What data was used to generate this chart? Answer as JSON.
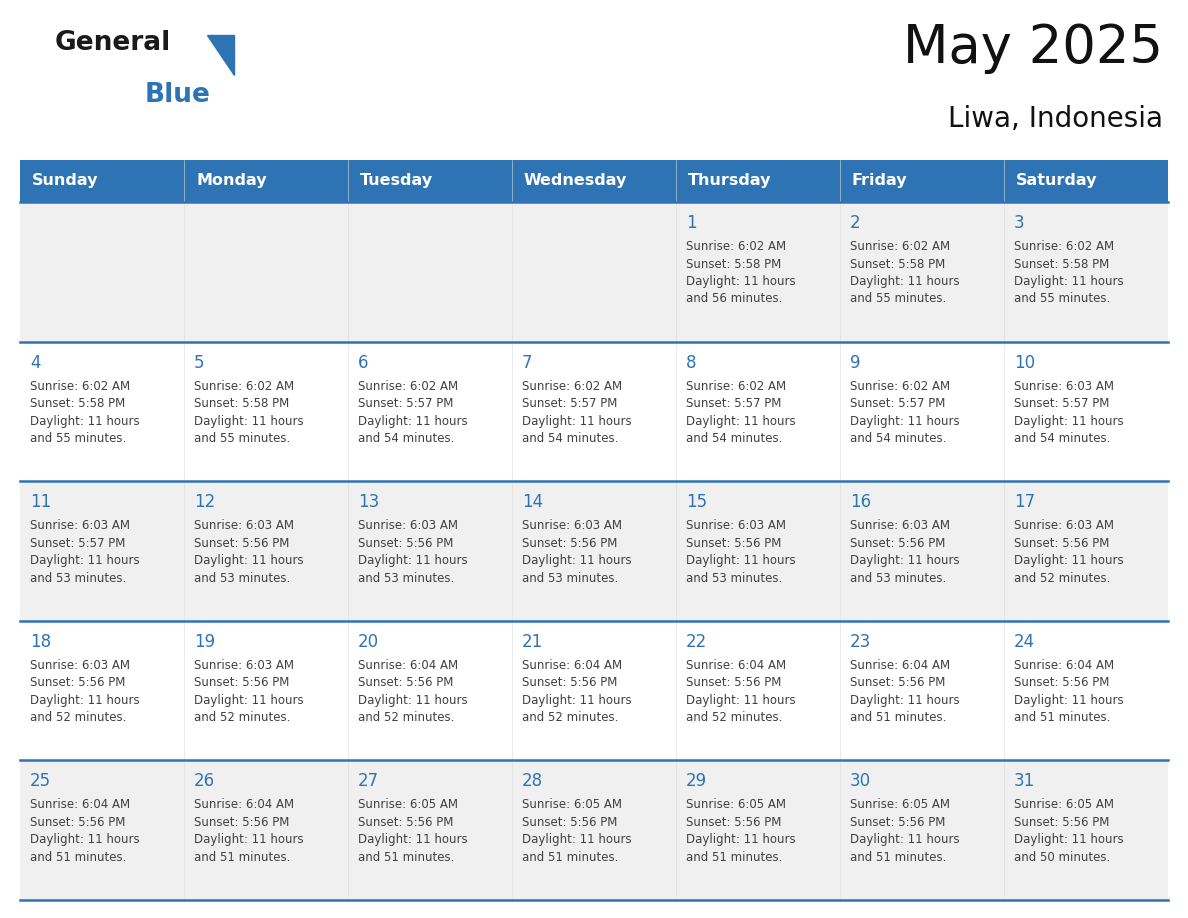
{
  "title": "May 2025",
  "subtitle": "Liwa, Indonesia",
  "header_bg": "#2E74B5",
  "header_text_color": "#FFFFFF",
  "weekdays": [
    "Sunday",
    "Monday",
    "Tuesday",
    "Wednesday",
    "Thursday",
    "Friday",
    "Saturday"
  ],
  "row_bg_even": "#F0F0F0",
  "row_bg_odd": "#FFFFFF",
  "day_number_color": "#2E74B5",
  "text_color": "#404040",
  "separator_color": "#2E74B5",
  "logo_black": "#1a1a1a",
  "logo_blue": "#2E74B5",
  "calendar": [
    [
      {
        "day": "",
        "sunrise": "",
        "sunset": "",
        "daylight": ""
      },
      {
        "day": "",
        "sunrise": "",
        "sunset": "",
        "daylight": ""
      },
      {
        "day": "",
        "sunrise": "",
        "sunset": "",
        "daylight": ""
      },
      {
        "day": "",
        "sunrise": "",
        "sunset": "",
        "daylight": ""
      },
      {
        "day": "1",
        "sunrise": "6:02 AM",
        "sunset": "5:58 PM",
        "daylight": "11 hours and 56 minutes."
      },
      {
        "day": "2",
        "sunrise": "6:02 AM",
        "sunset": "5:58 PM",
        "daylight": "11 hours and 55 minutes."
      },
      {
        "day": "3",
        "sunrise": "6:02 AM",
        "sunset": "5:58 PM",
        "daylight": "11 hours and 55 minutes."
      }
    ],
    [
      {
        "day": "4",
        "sunrise": "6:02 AM",
        "sunset": "5:58 PM",
        "daylight": "11 hours and 55 minutes."
      },
      {
        "day": "5",
        "sunrise": "6:02 AM",
        "sunset": "5:58 PM",
        "daylight": "11 hours and 55 minutes."
      },
      {
        "day": "6",
        "sunrise": "6:02 AM",
        "sunset": "5:57 PM",
        "daylight": "11 hours and 54 minutes."
      },
      {
        "day": "7",
        "sunrise": "6:02 AM",
        "sunset": "5:57 PM",
        "daylight": "11 hours and 54 minutes."
      },
      {
        "day": "8",
        "sunrise": "6:02 AM",
        "sunset": "5:57 PM",
        "daylight": "11 hours and 54 minutes."
      },
      {
        "day": "9",
        "sunrise": "6:02 AM",
        "sunset": "5:57 PM",
        "daylight": "11 hours and 54 minutes."
      },
      {
        "day": "10",
        "sunrise": "6:03 AM",
        "sunset": "5:57 PM",
        "daylight": "11 hours and 54 minutes."
      }
    ],
    [
      {
        "day": "11",
        "sunrise": "6:03 AM",
        "sunset": "5:57 PM",
        "daylight": "11 hours and 53 minutes."
      },
      {
        "day": "12",
        "sunrise": "6:03 AM",
        "sunset": "5:56 PM",
        "daylight": "11 hours and 53 minutes."
      },
      {
        "day": "13",
        "sunrise": "6:03 AM",
        "sunset": "5:56 PM",
        "daylight": "11 hours and 53 minutes."
      },
      {
        "day": "14",
        "sunrise": "6:03 AM",
        "sunset": "5:56 PM",
        "daylight": "11 hours and 53 minutes."
      },
      {
        "day": "15",
        "sunrise": "6:03 AM",
        "sunset": "5:56 PM",
        "daylight": "11 hours and 53 minutes."
      },
      {
        "day": "16",
        "sunrise": "6:03 AM",
        "sunset": "5:56 PM",
        "daylight": "11 hours and 53 minutes."
      },
      {
        "day": "17",
        "sunrise": "6:03 AM",
        "sunset": "5:56 PM",
        "daylight": "11 hours and 52 minutes."
      }
    ],
    [
      {
        "day": "18",
        "sunrise": "6:03 AM",
        "sunset": "5:56 PM",
        "daylight": "11 hours and 52 minutes."
      },
      {
        "day": "19",
        "sunrise": "6:03 AM",
        "sunset": "5:56 PM",
        "daylight": "11 hours and 52 minutes."
      },
      {
        "day": "20",
        "sunrise": "6:04 AM",
        "sunset": "5:56 PM",
        "daylight": "11 hours and 52 minutes."
      },
      {
        "day": "21",
        "sunrise": "6:04 AM",
        "sunset": "5:56 PM",
        "daylight": "11 hours and 52 minutes."
      },
      {
        "day": "22",
        "sunrise": "6:04 AM",
        "sunset": "5:56 PM",
        "daylight": "11 hours and 52 minutes."
      },
      {
        "day": "23",
        "sunrise": "6:04 AM",
        "sunset": "5:56 PM",
        "daylight": "11 hours and 51 minutes."
      },
      {
        "day": "24",
        "sunrise": "6:04 AM",
        "sunset": "5:56 PM",
        "daylight": "11 hours and 51 minutes."
      }
    ],
    [
      {
        "day": "25",
        "sunrise": "6:04 AM",
        "sunset": "5:56 PM",
        "daylight": "11 hours and 51 minutes."
      },
      {
        "day": "26",
        "sunrise": "6:04 AM",
        "sunset": "5:56 PM",
        "daylight": "11 hours and 51 minutes."
      },
      {
        "day": "27",
        "sunrise": "6:05 AM",
        "sunset": "5:56 PM",
        "daylight": "11 hours and 51 minutes."
      },
      {
        "day": "28",
        "sunrise": "6:05 AM",
        "sunset": "5:56 PM",
        "daylight": "11 hours and 51 minutes."
      },
      {
        "day": "29",
        "sunrise": "6:05 AM",
        "sunset": "5:56 PM",
        "daylight": "11 hours and 51 minutes."
      },
      {
        "day": "30",
        "sunrise": "6:05 AM",
        "sunset": "5:56 PM",
        "daylight": "11 hours and 51 minutes."
      },
      {
        "day": "31",
        "sunrise": "6:05 AM",
        "sunset": "5:56 PM",
        "daylight": "11 hours and 50 minutes."
      }
    ]
  ]
}
